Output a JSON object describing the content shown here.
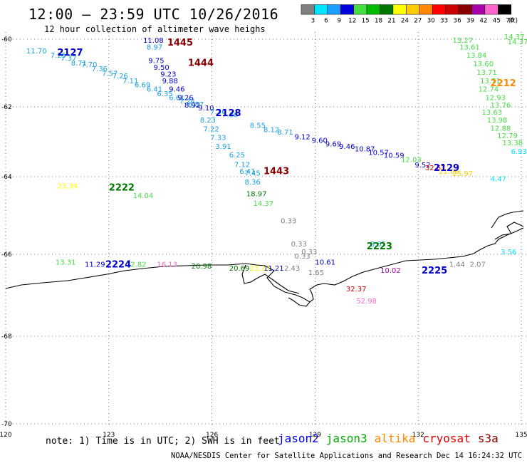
{
  "title": "12:00 – 23:59 UTC 10/26/2016",
  "subtitle": "12 hour collection of altimeter wave heighs",
  "legend": {
    "unit": "(ft)",
    "bins": [
      {
        "label": "3",
        "color": "#808080"
      },
      {
        "label": "6",
        "color": "#00e5ff"
      },
      {
        "label": "9",
        "color": "#1aa0ff"
      },
      {
        "label": "12",
        "color": "#0000e0"
      },
      {
        "label": "15",
        "color": "#44dd44"
      },
      {
        "label": "18",
        "color": "#00bb00"
      },
      {
        "label": "21",
        "color": "#007700"
      },
      {
        "label": "24",
        "color": "#ffff00"
      },
      {
        "label": "27",
        "color": "#ffcc00"
      },
      {
        "label": "30",
        "color": "#ff8800"
      },
      {
        "label": "33",
        "color": "#ff0000"
      },
      {
        "label": "36",
        "color": "#cc0000"
      },
      {
        "label": "39",
        "color": "#880000"
      },
      {
        "label": "42",
        "color": "#aa00aa"
      },
      {
        "label": "45",
        "color": "#ff66cc"
      },
      {
        "label": "70",
        "color": "#000000"
      }
    ]
  },
  "axes": {
    "lon_ticks": [
      "120",
      "123",
      "126",
      "129",
      "132",
      "135"
    ],
    "lat_ticks": [
      "-60",
      "-62",
      "-64",
      "-66",
      "-68",
      "-70"
    ]
  },
  "tracks": [
    {
      "id": "2127",
      "color": "#1a9fe0",
      "label_color": "#0000cc",
      "label_lon": 121.5,
      "label_lat": -60.4,
      "points": [
        [
          120.6,
          -60.42,
          "11.70"
        ],
        [
          121.3,
          -60.55,
          "7.25"
        ],
        [
          121.6,
          -60.63,
          "7.37"
        ],
        [
          121.9,
          -60.78,
          "8.71"
        ],
        [
          122.2,
          -60.82,
          "7.70"
        ],
        [
          122.5,
          -60.95,
          "7.36"
        ],
        [
          122.8,
          -61.08,
          "7.57"
        ],
        [
          123.1,
          -61.16,
          "7.26"
        ],
        [
          123.4,
          -61.3,
          "7.11"
        ],
        [
          123.75,
          -61.42,
          "6.69"
        ],
        [
          124.1,
          -61.55,
          "6.41"
        ],
        [
          124.4,
          -61.68,
          "6.35"
        ],
        [
          124.75,
          -61.8,
          "6.61"
        ],
        [
          125.05,
          -61.9,
          "7.24"
        ],
        [
          125.3,
          -62.0,
          "6.87"
        ],
        [
          125.6,
          -62.1,
          "9.10"
        ],
        [
          125.95,
          -62.2,
          "7.36"
        ],
        [
          126.3,
          -62.3,
          "7.80"
        ]
      ],
      "point_color_overrides": {
        "9.10": "#0000cc"
      }
    },
    {
      "id": "2128",
      "color": "#0000cc",
      "label_color": "#0000cc",
      "label_lon": 126.1,
      "label_lat": -62.18,
      "points": [
        [
          127.1,
          -62.6,
          "8.55"
        ],
        [
          127.5,
          -62.72,
          "8.12"
        ],
        [
          127.9,
          -62.8,
          "8.71"
        ],
        [
          128.4,
          -62.93,
          "9.12"
        ],
        [
          128.9,
          -63.03,
          "9.60"
        ],
        [
          129.3,
          -63.13,
          "9.69"
        ],
        [
          129.7,
          -63.2,
          "9.46"
        ],
        [
          130.15,
          -63.28,
          "10.87"
        ],
        [
          130.55,
          -63.38,
          "10.57"
        ],
        [
          131.0,
          -63.46,
          "10.59"
        ],
        [
          131.5,
          -63.58,
          "12.03"
        ],
        [
          131.9,
          -63.73,
          "9.52"
        ]
      ],
      "point_color_overrides": {
        "8.55": "#1a9fe0",
        "8.12": "#1a9fe0",
        "8.71": "#1a9fe0",
        "12.03": "#44dd44"
      }
    },
    {
      "id": "2129",
      "color": "#cc0000",
      "label_color": "#0000cc",
      "label_lon": 132.45,
      "label_lat": -63.75,
      "points": [
        [
          132.2,
          -63.82,
          "32.67"
        ],
        [
          132.6,
          -63.92,
          "21.06"
        ],
        [
          133.0,
          -63.98,
          "25.97"
        ],
        [
          134.1,
          -64.12,
          "4.47"
        ]
      ],
      "point_color_overrides": {
        "21.06": "#ffcc00",
        "25.97": "#ffcc00",
        "4.47": "#00e5ff"
      }
    },
    {
      "id": "1445",
      "color": "#0000cc",
      "label_color": "#880000",
      "label_lon": 124.7,
      "label_lat": -60.1,
      "points": [
        [
          124.0,
          -60.1,
          "11.08"
        ],
        [
          124.1,
          -60.3,
          "8.97"
        ],
        [
          124.15,
          -60.7,
          "9.75"
        ],
        [
          124.3,
          -60.9,
          "9.50"
        ],
        [
          124.5,
          -61.1,
          "9.23"
        ],
        [
          124.55,
          -61.3,
          "9.88"
        ],
        [
          124.75,
          -61.55,
          "9.46"
        ],
        [
          125.0,
          -61.8,
          "9.26"
        ],
        [
          125.2,
          -62.02,
          "8.92"
        ]
      ],
      "point_color_overrides": {
        "8.97": "#1a9fe0"
      }
    },
    {
      "id": "1444",
      "color": "#880000",
      "label_color": "#880000",
      "label_lon": 125.3,
      "label_lat": -60.7,
      "points": []
    },
    {
      "id": "1443",
      "color": "#1a9fe0",
      "label_color": "#880000",
      "label_lon": 127.5,
      "label_lat": -63.85,
      "points": [
        [
          125.65,
          -62.45,
          "8.23"
        ],
        [
          125.75,
          -62.7,
          "7.22"
        ],
        [
          125.95,
          -62.95,
          "7.33"
        ],
        [
          126.1,
          -63.2,
          "3.91"
        ],
        [
          126.5,
          -63.45,
          "6.25"
        ],
        [
          126.65,
          -63.72,
          "7.12"
        ],
        [
          126.8,
          -63.92,
          "6.41"
        ],
        [
          126.95,
          -63.97,
          "7.45"
        ],
        [
          126.95,
          -64.2,
          "8.36"
        ],
        [
          127.0,
          -64.5,
          "18.97"
        ],
        [
          127.2,
          -64.75,
          "14.37"
        ]
      ],
      "point_color_overrides": {
        "18.97": "#007700",
        "14.37": "#44dd44",
        "8.23": "#1a9fe0"
      }
    },
    {
      "id": "2222",
      "color": "#44dd44",
      "label_color": "#007700",
      "label_lon": 123.0,
      "label_lat": -64.28,
      "points": [
        [
          121.5,
          -64.3,
          "23.39"
        ],
        [
          123.7,
          -64.55,
          "14.04"
        ]
      ],
      "point_color_overrides": {
        "23.39": "#ffff00"
      }
    },
    {
      "id": "2223",
      "color": "#808080",
      "label_color": "#007700",
      "label_lon": 130.5,
      "label_lat": -65.8,
      "points": [
        [
          128.0,
          -65.2,
          "0.33"
        ],
        [
          128.3,
          -65.8,
          "0.33"
        ],
        [
          128.6,
          -66.0,
          "0.33"
        ],
        [
          128.4,
          -66.1,
          "0.33"
        ],
        [
          128.1,
          -66.4,
          "2.43"
        ],
        [
          128.8,
          -66.5,
          "1.65"
        ],
        [
          130.6,
          -65.8,
          "8.65"
        ],
        [
          129.0,
          -66.25,
          "10.61"
        ]
      ],
      "point_color_overrides": {
        "8.65": "#1a9fe0",
        "10.61": "#0000cc"
      }
    },
    {
      "id": "2224",
      "color": "#44dd44",
      "label_color": "#0000cc",
      "label_lon": 122.9,
      "label_lat": -66.25,
      "points": [
        [
          121.45,
          -66.25,
          "13.31"
        ],
        [
          122.3,
          -66.3,
          "11.29"
        ],
        [
          123.5,
          -66.3,
          "12.82"
        ],
        [
          124.4,
          -66.3,
          "16.13"
        ],
        [
          125.4,
          -66.35,
          "20.98"
        ],
        [
          126.5,
          -66.4,
          "20.69"
        ],
        [
          127.1,
          -66.4,
          "23.23"
        ],
        [
          127.5,
          -66.4,
          "11.21"
        ]
      ],
      "point_color_overrides": {
        "16.13": "#ff66cc",
        "20.98": "#007700",
        "20.69": "#007700",
        "23.23": "#ffff00",
        "11.21": "#0000cc",
        "11.29": "#0000cc"
      }
    },
    {
      "id": "2225",
      "color": "#0000cc",
      "label_color": "#0000cc",
      "label_lon": 132.1,
      "label_lat": -66.4,
      "points": [
        [
          130.9,
          -66.45,
          "10.02"
        ],
        [
          132.9,
          -66.3,
          "1.44"
        ],
        [
          133.5,
          -66.3,
          "2.07"
        ],
        [
          134.4,
          -66.0,
          "3.56"
        ]
      ],
      "point_color_overrides": {
        "10.02": "#aa00aa",
        "1.44": "#808080",
        "2.07": "#808080",
        "3.56": "#00e5ff"
      }
    },
    {
      "id": "cryosat",
      "color": "#cc0000",
      "label_color": "#cc0000",
      "points": [
        [
          129.9,
          -66.9,
          "32.37"
        ],
        [
          130.2,
          -67.2,
          "52.98"
        ]
      ],
      "point_color_overrides": {
        "52.98": "#ff66cc"
      }
    },
    {
      "id": "2212",
      "color": "#44dd44",
      "label_color": "#ff8800",
      "label_lon": 134.1,
      "label_lat": -61.3,
      "points": [
        [
          133.0,
          -60.1,
          "13.27"
        ],
        [
          133.2,
          -60.3,
          "13.61"
        ],
        [
          133.4,
          -60.55,
          "13.84"
        ],
        [
          133.6,
          -60.8,
          "13.60"
        ],
        [
          133.7,
          -61.05,
          "13.71"
        ],
        [
          133.8,
          -61.3,
          "13.71"
        ],
        [
          133.75,
          -61.55,
          "12.74"
        ],
        [
          133.95,
          -61.8,
          "12.93"
        ],
        [
          134.1,
          -62.02,
          "13.76"
        ],
        [
          133.85,
          -62.22,
          "13.63"
        ],
        [
          134.0,
          -62.45,
          "13.98"
        ],
        [
          134.1,
          -62.68,
          "12.88"
        ],
        [
          134.3,
          -62.9,
          "12.79"
        ],
        [
          134.45,
          -63.1,
          "13.38"
        ],
        [
          134.7,
          -63.35,
          "6.93"
        ],
        [
          134.5,
          -60.0,
          "14.37"
        ],
        [
          134.6,
          -60.15,
          "14.37"
        ]
      ],
      "point_color_overrides": {
        "6.93": "#00e5ff"
      }
    }
  ],
  "footer": {
    "note": "note: 1) Time is in UTC; 2) SWH is in feet",
    "satellites": [
      {
        "name": "jason2",
        "color": "#0000dd"
      },
      {
        "name": "jason3",
        "color": "#00aa00"
      },
      {
        "name": "altika",
        "color": "#ff8800"
      },
      {
        "name": "cryosat",
        "color": "#dd0000"
      },
      {
        "name": "s3a",
        "color": "#880000"
      }
    ],
    "credit": "NOAA/NESDIS Center for Satellite Applications and Research    Dec 14 16:24:32 UTC 2016"
  }
}
